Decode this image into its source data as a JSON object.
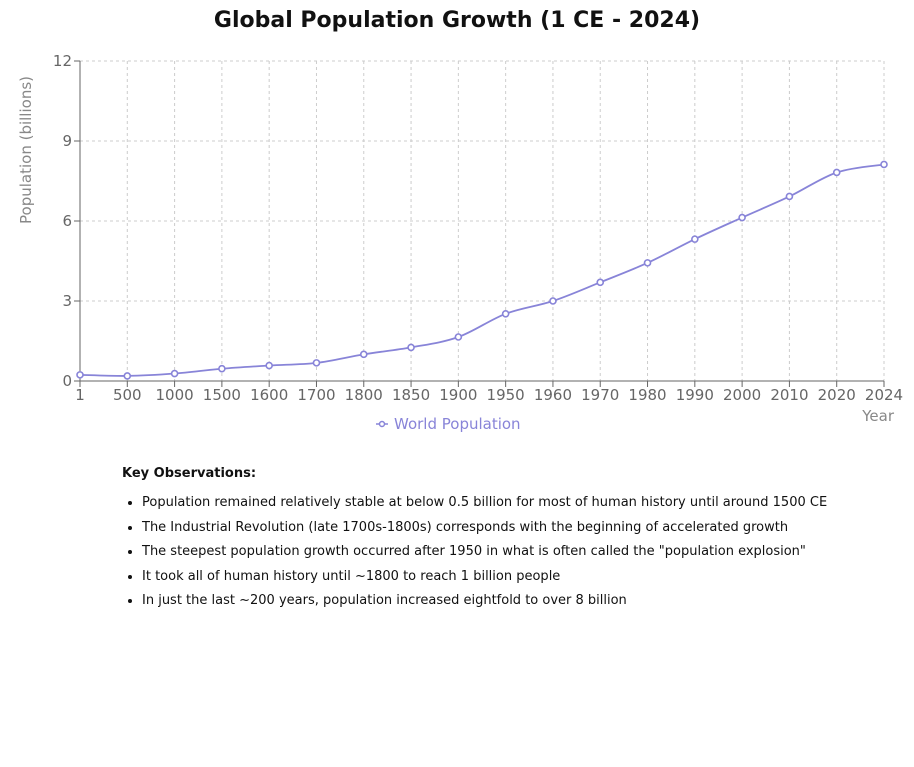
{
  "chart_data": {
    "type": "line",
    "title": "Global Population Growth (1 CE - 2024)",
    "xlabel": "Year",
    "ylabel": "Population (billions)",
    "x_scale": "categorical",
    "categories": [
      "1",
      "500",
      "1000",
      "1500",
      "1600",
      "1700",
      "1800",
      "1850",
      "1900",
      "1950",
      "1960",
      "1970",
      "1980",
      "1990",
      "2000",
      "2010",
      "2020",
      "2024"
    ],
    "series": [
      {
        "name": "World Population",
        "values": [
          0.23,
          0.19,
          0.28,
          0.46,
          0.58,
          0.68,
          1.0,
          1.26,
          1.65,
          2.52,
          3.0,
          3.7,
          4.43,
          5.32,
          6.13,
          6.92,
          7.82,
          8.12
        ],
        "color": "#8884d8"
      }
    ],
    "ylim": [
      0,
      12
    ],
    "yticks": [
      0,
      3,
      6,
      9,
      12
    ],
    "grid": true,
    "grid_style": "dashed",
    "legend_position": "bottom",
    "curve": "smooth",
    "markers": "hollow-circle"
  },
  "observations": {
    "heading": "Key Observations:",
    "items": [
      "Population remained relatively stable at below 0.5 billion for most of human history until around 1500 CE",
      "The Industrial Revolution (late 1700s-1800s) corresponds with the beginning of accelerated growth",
      "The steepest population growth occurred after 1950 in what is often called the \"population explosion\"",
      "It took all of human history until ~1800 to reach 1 billion people",
      "In just the last ~200 years, population increased eightfold to over 8 billion"
    ]
  },
  "colors": {
    "series": "#8884d8",
    "grid": "#cccccc",
    "axis": "#666666",
    "axis_title": "#888888"
  }
}
